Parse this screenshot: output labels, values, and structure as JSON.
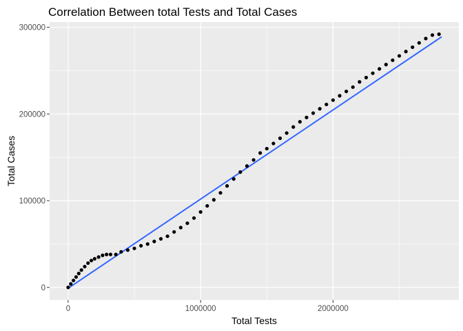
{
  "chart_data": {
    "type": "scatter",
    "title": "Correlation Between total Tests and Total Cases",
    "xlabel": "Total Tests",
    "ylabel": "Total Cases",
    "xlim": [
      -140000,
      2950000
    ],
    "ylim": [
      -14500,
      306000
    ],
    "x_ticks": [
      0,
      1000000,
      2000000
    ],
    "x_minor": [
      500000,
      1500000,
      2500000
    ],
    "y_ticks": [
      0,
      100000,
      200000,
      300000
    ],
    "y_minor": [
      50000,
      150000,
      250000
    ],
    "grid": true,
    "legend": "none",
    "colors": {
      "panel": "#ebebeb",
      "grid": "#ffffff",
      "points": "#000000",
      "trend_line": "#3366ff"
    },
    "points_x": [
      0,
      20000,
      40000,
      60000,
      80000,
      100000,
      125000,
      150000,
      175000,
      200000,
      230000,
      260000,
      290000,
      320000,
      360000,
      400000,
      450000,
      500000,
      550000,
      600000,
      650000,
      700000,
      750000,
      800000,
      850000,
      900000,
      950000,
      1000000,
      1050000,
      1100000,
      1150000,
      1200000,
      1250000,
      1300000,
      1350000,
      1400000,
      1450000,
      1500000,
      1550000,
      1600000,
      1650000,
      1700000,
      1750000,
      1800000,
      1850000,
      1900000,
      1950000,
      2000000,
      2050000,
      2100000,
      2150000,
      2200000,
      2250000,
      2300000,
      2350000,
      2400000,
      2450000,
      2500000,
      2550000,
      2600000,
      2650000,
      2700000,
      2750000,
      2800000
    ],
    "points_y": [
      0,
      4000,
      8000,
      12000,
      16000,
      20000,
      24000,
      28000,
      31000,
      33000,
      35000,
      37000,
      38000,
      38000,
      38000,
      41000,
      43000,
      45000,
      48000,
      50000,
      53000,
      56000,
      59000,
      64000,
      69000,
      74000,
      80000,
      87000,
      94000,
      101000,
      109000,
      117000,
      125000,
      133000,
      140000,
      147000,
      155000,
      160000,
      166000,
      172000,
      178000,
      185000,
      191000,
      196000,
      201000,
      206000,
      211000,
      216000,
      221000,
      226000,
      231000,
      237000,
      242000,
      247000,
      252000,
      257000,
      262000,
      267000,
      272000,
      277000,
      282000,
      287000,
      291000,
      292000
    ],
    "trend_line": [
      [
        0,
        -1000
      ],
      [
        2820000,
        289000
      ]
    ]
  }
}
